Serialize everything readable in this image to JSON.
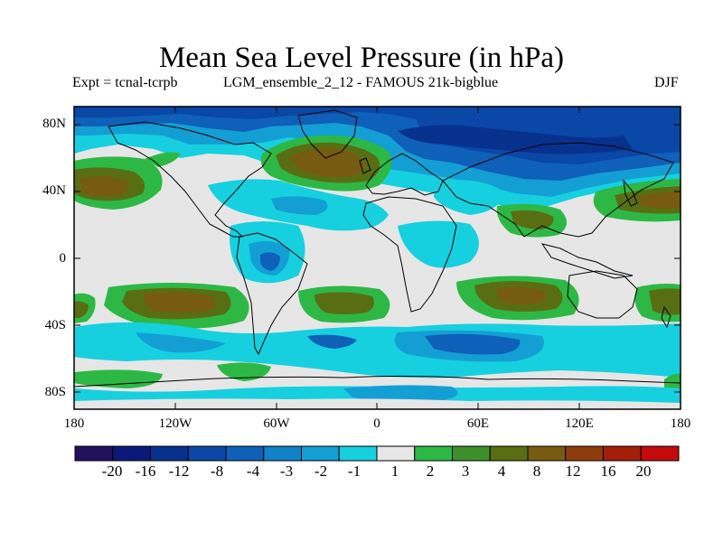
{
  "title": "Mean Sea Level Pressure (in hPa)",
  "expt_label": "Expt = tcnal-tcrpb",
  "run_label": "LGM_ensemble_2_12 - FAMOUS 21k-bigblue",
  "season": "DJF",
  "lat_labels": [
    "80N",
    "40N",
    "0",
    "40S",
    "80S"
  ],
  "lon_labels": [
    "180",
    "120W",
    "60W",
    "0",
    "60E",
    "120E",
    "180"
  ],
  "colorbar": {
    "labels": [
      "-20",
      "-16",
      "-12",
      "-8",
      "-4",
      "-3",
      "-2",
      "-1",
      "1",
      "2",
      "3",
      "4",
      "8",
      "12",
      "16",
      "20"
    ],
    "colors": [
      "#22115e",
      "#0b1a78",
      "#08318e",
      "#0a47a6",
      "#0e60b8",
      "#1181c8",
      "#139fd4",
      "#16d0e0",
      "#e6e6e6",
      "#2db846",
      "#3e8f2a",
      "#596e12",
      "#775b10",
      "#8d3d0c",
      "#a31f0a",
      "#c40a0a"
    ]
  },
  "fill_colors": {
    "ocean": "#e6e6e6",
    "coastline": "#000000"
  }
}
